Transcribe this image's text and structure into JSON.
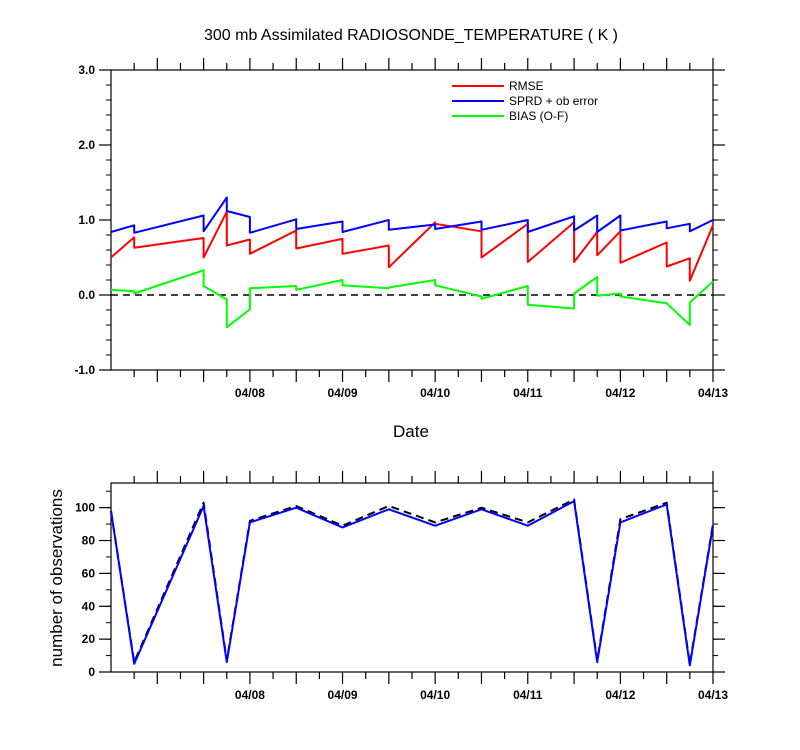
{
  "chart_data": [
    {
      "type": "line",
      "title": "300 mb Assimilated RADIOSONDE_TEMPERATURE ( K )",
      "xlabel": "Date",
      "ylabel": "",
      "ylim": [
        -1.0,
        3.0
      ],
      "yticks": [
        -1.0,
        0.0,
        1.0,
        2.0,
        3.0
      ],
      "ytick_labels": [
        "-1.0",
        "0.0",
        "1.0",
        "2.0",
        "3.0"
      ],
      "xlim": [
        6.5,
        13.0
      ],
      "xticks": [
        8,
        9,
        10,
        11,
        12,
        13
      ],
      "xtick_labels": [
        "04/08",
        "04/09",
        "04/10",
        "04/11",
        "04/12",
        "04/13"
      ],
      "grid": false,
      "legend_position": "top-right",
      "reference_line": {
        "y": 0.0,
        "style": "dashed",
        "color": "#000000"
      },
      "series": [
        {
          "name": "RMSE",
          "color": "#ff0000",
          "x": [
            6.5,
            6.75,
            6.75,
            7.5,
            7.5,
            7.75,
            7.75,
            8.0,
            8.0,
            8.5,
            8.5,
            9.0,
            9.0,
            9.5,
            9.5,
            10.0,
            10.0,
            10.5,
            10.5,
            11.0,
            11.0,
            11.5,
            11.5,
            11.75,
            11.75,
            12.0,
            12.0,
            12.5,
            12.5,
            12.75,
            12.75,
            13.0
          ],
          "y": [
            0.5,
            0.77,
            0.63,
            0.76,
            0.5,
            1.11,
            0.66,
            0.74,
            0.55,
            0.86,
            0.62,
            0.75,
            0.55,
            0.66,
            0.37,
            0.97,
            0.95,
            0.85,
            0.5,
            0.95,
            0.44,
            0.97,
            0.44,
            0.84,
            0.53,
            0.85,
            0.43,
            0.7,
            0.38,
            0.49,
            0.19,
            0.93
          ]
        },
        {
          "name": "SPRD + ob error",
          "color": "#0000ff",
          "x": [
            6.5,
            6.75,
            6.75,
            7.5,
            7.5,
            7.75,
            7.75,
            8.0,
            8.0,
            8.5,
            8.5,
            9.0,
            9.0,
            9.5,
            9.5,
            10.0,
            10.0,
            10.5,
            10.5,
            11.0,
            11.0,
            11.5,
            11.5,
            11.75,
            11.75,
            12.0,
            12.0,
            12.5,
            12.5,
            12.75,
            12.75,
            13.0
          ],
          "y": [
            0.84,
            0.93,
            0.83,
            1.06,
            0.85,
            1.3,
            1.12,
            1.04,
            0.83,
            1.01,
            0.88,
            0.98,
            0.84,
            1.0,
            0.87,
            0.94,
            0.88,
            0.98,
            0.87,
            1.0,
            0.84,
            1.05,
            0.86,
            1.06,
            0.84,
            1.06,
            0.86,
            0.98,
            0.89,
            0.95,
            0.85,
            1.0
          ]
        },
        {
          "name": "BIAS (O-F)",
          "color": "#00ff00",
          "x": [
            6.5,
            6.75,
            6.75,
            7.5,
            7.5,
            7.75,
            7.75,
            8.0,
            8.0,
            8.5,
            8.5,
            9.0,
            9.0,
            9.5,
            9.5,
            10.0,
            10.0,
            10.5,
            10.5,
            11.0,
            11.0,
            11.5,
            11.5,
            11.75,
            11.75,
            12.0,
            12.0,
            12.5,
            12.5,
            12.75,
            12.75,
            13.0
          ],
          "y": [
            0.07,
            0.05,
            0.02,
            0.33,
            0.12,
            -0.06,
            -0.43,
            -0.19,
            0.09,
            0.12,
            0.07,
            0.2,
            0.13,
            0.09,
            0.1,
            0.2,
            0.13,
            -0.02,
            -0.05,
            0.12,
            -0.13,
            -0.18,
            0.02,
            0.24,
            -0.01,
            0.02,
            -0.02,
            -0.11,
            -0.11,
            -0.4,
            -0.1,
            0.18
          ]
        }
      ]
    },
    {
      "type": "line",
      "title": "",
      "xlabel": "",
      "ylabel": "number of observations",
      "ylim": [
        0,
        115
      ],
      "yticks": [
        0,
        20,
        40,
        60,
        80,
        100
      ],
      "ytick_labels": [
        "0",
        "20",
        "40",
        "60",
        "80",
        "100"
      ],
      "xlim": [
        6.5,
        13.0
      ],
      "xticks": [
        8,
        9,
        10,
        11,
        12,
        13
      ],
      "xtick_labels": [
        "04/08",
        "04/09",
        "04/10",
        "04/11",
        "04/12",
        "04/13"
      ],
      "grid": false,
      "series": [
        {
          "color": "#000000",
          "dash": true,
          "x": [
            6.5,
            6.75,
            7.5,
            7.75,
            8.0,
            8.5,
            9.0,
            9.5,
            10.0,
            10.5,
            11.0,
            11.5,
            11.75,
            12.0,
            12.5,
            12.75,
            13.0
          ],
          "y": [
            98,
            6,
            103,
            7,
            92,
            101,
            89,
            101,
            91,
            100,
            91,
            105,
            7,
            93,
            103,
            5,
            90
          ]
        },
        {
          "color": "#0000ff",
          "dash": false,
          "x": [
            6.5,
            6.75,
            7.5,
            7.75,
            8.0,
            8.5,
            9.0,
            9.5,
            10.0,
            10.5,
            11.0,
            11.5,
            11.75,
            12.0,
            12.5,
            12.75,
            13.0
          ],
          "y": [
            98,
            5,
            101,
            6,
            91,
            100,
            88,
            99,
            89,
            99,
            89,
            104,
            6,
            91,
            102,
            4,
            89
          ]
        }
      ]
    }
  ]
}
